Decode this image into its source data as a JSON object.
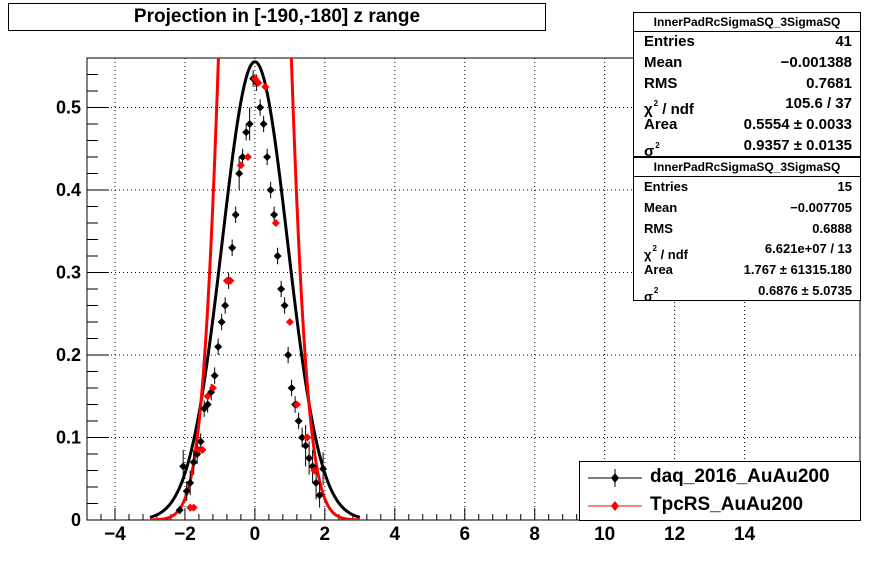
{
  "title": "Projection in [-190,-180] z range",
  "stats": [
    {
      "name": "InnerPadRcSigmaSQ_3SigmaSQ",
      "entries_label": "Entries",
      "entries": "41",
      "mean_label": "Mean",
      "mean": "−0.001388",
      "rms_label": "RMS",
      "rms": "0.7681",
      "chi2_symbol": "χ",
      "chi2_label": "/ ndf",
      "chi2": "105.6 / 37",
      "area_label": "Area",
      "area": "0.5554 ± 0.0033",
      "sigma_symbol": "σ",
      "sigma": "0.9357 ± 0.0135"
    },
    {
      "name": "InnerPadRcSigmaSQ_3SigmaSQ",
      "entries_label": "Entries",
      "entries": "15",
      "mean_label": "Mean",
      "mean": "−0.007705",
      "rms_label": "RMS",
      "rms": "0.6888",
      "chi2_symbol": "χ",
      "chi2_label": "/ ndf",
      "chi2": "6.621e+07 / 13",
      "area_label": "Area",
      "area": "1.767 ± 61315.180",
      "sigma_symbol": "σ",
      "sigma": "0.6876 ± 5.0735"
    }
  ],
  "legend": [
    {
      "label": "daq_2016_AuAu200",
      "color": "#000000",
      "marker": "diamond"
    },
    {
      "label": "TpcRS_AuAu200",
      "color": "#ff0000",
      "marker": "diamond"
    }
  ],
  "chart_data": {
    "type": "scatter",
    "xlim": [
      -4.8,
      17.3
    ],
    "ylim": [
      0,
      0.56
    ],
    "x_ticks": [
      -4,
      -2,
      0,
      2,
      4,
      6,
      8,
      10,
      12,
      14
    ],
    "x_tick_labels": [
      "−4",
      "−2",
      "0",
      "2",
      "4",
      "6",
      "8",
      "10",
      "12",
      "14"
    ],
    "y_ticks": [
      0,
      0.1,
      0.2,
      0.3,
      0.4,
      0.5
    ],
    "y_tick_labels": [
      "0",
      "0.1",
      "0.2",
      "0.3",
      "0.4",
      "0.5"
    ],
    "grid": true,
    "legend_position": "bottom-right",
    "series": [
      {
        "name": "daq_2016_AuAu200",
        "color": "#000000",
        "marker": "diamond",
        "x": [
          -2.15,
          -2.05,
          -1.95,
          -1.85,
          -1.75,
          -1.65,
          -1.55,
          -1.45,
          -1.35,
          -1.25,
          -1.15,
          -1.05,
          -0.95,
          -0.85,
          -0.75,
          -0.65,
          -0.55,
          -0.45,
          -0.35,
          -0.25,
          -0.15,
          -0.05,
          0.05,
          0.15,
          0.25,
          0.35,
          0.45,
          0.55,
          0.65,
          0.75,
          0.85,
          0.95,
          1.05,
          1.15,
          1.25,
          1.35,
          1.45,
          1.55,
          1.65,
          1.75,
          1.85,
          1.95
        ],
        "y": [
          0.012,
          0.065,
          0.035,
          0.045,
          0.07,
          0.08,
          0.095,
          0.135,
          0.14,
          0.155,
          0.175,
          0.21,
          0.24,
          0.26,
          0.29,
          0.33,
          0.37,
          0.42,
          0.44,
          0.47,
          0.48,
          0.535,
          0.53,
          0.5,
          0.48,
          0.44,
          0.4,
          0.37,
          0.32,
          0.28,
          0.26,
          0.2,
          0.16,
          0.14,
          0.12,
          0.1,
          0.09,
          0.075,
          0.065,
          0.045,
          0.03,
          0.062
        ],
        "yerr": [
          0.005,
          0.02,
          0.012,
          0.015,
          0.015,
          0.012,
          0.01,
          0.01,
          0.01,
          0.01,
          0.01,
          0.01,
          0.01,
          0.01,
          0.01,
          0.01,
          0.01,
          0.02,
          0.01,
          0.01,
          0.02,
          0.01,
          0.01,
          0.01,
          0.01,
          0.01,
          0.01,
          0.01,
          0.01,
          0.01,
          0.01,
          0.01,
          0.01,
          0.01,
          0.01,
          0.012,
          0.025,
          0.02,
          0.02,
          0.02,
          0.015,
          0.02
        ]
      },
      {
        "name": "TpcRS_AuAu200",
        "color": "#ff0000",
        "marker": "diamond",
        "x": [
          -1.85,
          -1.75,
          -1.6,
          -1.5,
          -1.35,
          -1.2,
          -0.8,
          -0.7,
          -0.4,
          -0.2,
          0.0,
          0.1,
          0.3,
          0.6,
          1.0,
          1.2,
          1.5,
          1.7
        ],
        "y": [
          0.015,
          0.015,
          0.085,
          0.085,
          0.15,
          0.16,
          0.29,
          0.29,
          0.43,
          0.44,
          0.535,
          0.53,
          0.525,
          0.36,
          0.24,
          0.14,
          0.1,
          0.06
        ],
        "yerr": [
          0,
          0,
          0,
          0,
          0,
          0,
          0,
          0,
          0,
          0,
          0,
          0,
          0,
          0,
          0,
          0,
          0,
          0
        ]
      }
    ],
    "fits": [
      {
        "name": "daq_2016_AuAu200 fit",
        "color": "#000000",
        "area": 0.5554,
        "sigma": 0.9357
      },
      {
        "name": "TpcRS_AuAu200 fit",
        "color": "#ff0000",
        "area": 1.767,
        "sigma": 0.6876
      }
    ]
  }
}
